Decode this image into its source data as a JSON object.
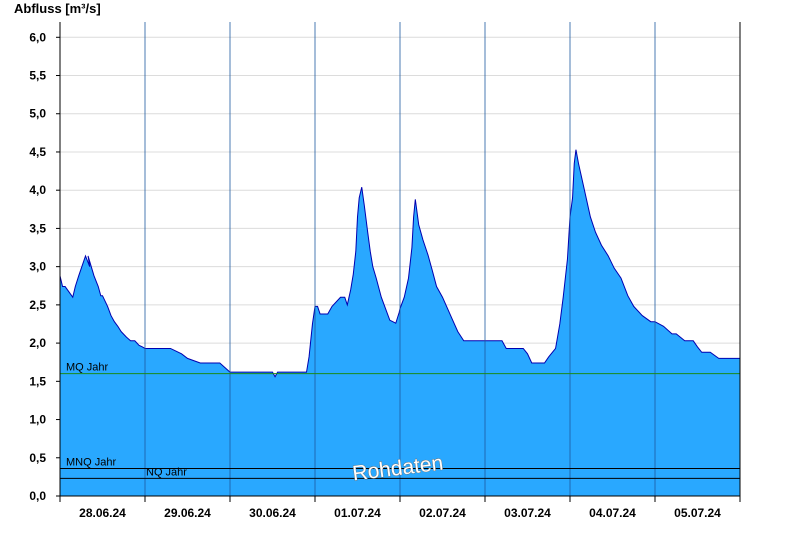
{
  "chart_data": {
    "type": "area",
    "ylabel": "Abfluss [m³/s]",
    "ylim": [
      0,
      6.2
    ],
    "yticks": [
      "0,0",
      "0,5",
      "1,0",
      "1,5",
      "2,0",
      "2,5",
      "3,0",
      "3,5",
      "4,0",
      "4,5",
      "5,0",
      "5,5",
      "6,0"
    ],
    "xlim": [
      0,
      8
    ],
    "xticks": [
      "28.06.24",
      "29.06.24",
      "30.06.24",
      "01.07.24",
      "02.07.24",
      "03.07.24",
      "04.07.24",
      "05.07.24"
    ],
    "x_unit": "days since start of 28.06.24",
    "series": [
      {
        "x": [
          0.0,
          0.03,
          0.06,
          0.15,
          0.18,
          0.22,
          0.3,
          0.35,
          0.33,
          0.4,
          0.45,
          0.48,
          0.5,
          0.56,
          0.6,
          0.64,
          0.68,
          0.72,
          0.78,
          0.83,
          0.88,
          0.93,
          0.97,
          1.0,
          1.1,
          1.2,
          1.3,
          1.43,
          1.5,
          1.65,
          1.75,
          1.88,
          2.0,
          2.3,
          2.5,
          2.53,
          2.56,
          2.9,
          2.93,
          2.97,
          3.0,
          3.03,
          3.06,
          3.15,
          3.2,
          3.3,
          3.35,
          3.38,
          3.42,
          3.45,
          3.48,
          3.5,
          3.52,
          3.55,
          3.58,
          3.62,
          3.65,
          3.68,
          3.72,
          3.78,
          3.83,
          3.88,
          3.95,
          3.99,
          4.0,
          4.05,
          4.1,
          4.14,
          4.16,
          4.18,
          4.22,
          4.27,
          4.33,
          4.38,
          4.43,
          4.5,
          4.56,
          4.62,
          4.68,
          4.75,
          4.8,
          4.95,
          5.0,
          5.2,
          5.25,
          5.45,
          5.5,
          5.55,
          5.7,
          5.75,
          5.83,
          5.88,
          5.92,
          5.97,
          6.0,
          6.03,
          6.05,
          6.07,
          6.1,
          6.13,
          6.18,
          6.24,
          6.3,
          6.37,
          6.45,
          6.52,
          6.6,
          6.68,
          6.75,
          6.85,
          6.95,
          7.0,
          7.1,
          7.2,
          7.25,
          7.35,
          7.45,
          7.5,
          7.55,
          7.65,
          7.75,
          7.85,
          8.0
        ],
        "y": [
          2.88,
          2.74,
          2.74,
          2.6,
          2.74,
          2.88,
          3.14,
          3.0,
          3.14,
          2.88,
          2.74,
          2.62,
          2.62,
          2.48,
          2.36,
          2.28,
          2.22,
          2.15,
          2.08,
          2.03,
          2.03,
          1.97,
          1.95,
          1.93,
          1.93,
          1.93,
          1.93,
          1.86,
          1.8,
          1.74,
          1.74,
          1.74,
          1.62,
          1.62,
          1.62,
          1.56,
          1.62,
          1.62,
          1.82,
          2.25,
          2.48,
          2.48,
          2.38,
          2.38,
          2.48,
          2.6,
          2.6,
          2.5,
          2.7,
          2.9,
          3.2,
          3.65,
          3.9,
          4.04,
          3.8,
          3.45,
          3.2,
          3.0,
          2.85,
          2.6,
          2.45,
          2.3,
          2.26,
          2.4,
          2.45,
          2.6,
          2.85,
          3.25,
          3.65,
          3.88,
          3.55,
          3.35,
          3.15,
          2.95,
          2.74,
          2.6,
          2.45,
          2.3,
          2.15,
          2.03,
          2.03,
          2.03,
          2.03,
          2.03,
          1.93,
          1.93,
          1.86,
          1.74,
          1.74,
          1.82,
          1.93,
          2.25,
          2.6,
          3.1,
          3.65,
          3.9,
          4.35,
          4.53,
          4.35,
          4.2,
          3.95,
          3.65,
          3.45,
          3.28,
          3.14,
          2.98,
          2.85,
          2.62,
          2.48,
          2.36,
          2.28,
          2.28,
          2.22,
          2.12,
          2.12,
          2.03,
          2.03,
          1.95,
          1.88,
          1.88,
          1.8,
          1.8,
          1.8
        ]
      }
    ],
    "reference_lines": [
      {
        "label": "MQ Jahr",
        "value": 1.6,
        "color": "#1a8a1a"
      },
      {
        "label": "MNQ Jahr",
        "value": 0.36,
        "color": "#000000"
      },
      {
        "label": "NQ Jahr",
        "value": 0.23,
        "color": "#000000"
      }
    ],
    "watermark": "Rohdaten",
    "colors": {
      "fill": "#29a8ff",
      "outline": "#0000b0",
      "gridline": "#dcdcdc",
      "dayline": "#1e5aa0"
    },
    "grid": true
  }
}
